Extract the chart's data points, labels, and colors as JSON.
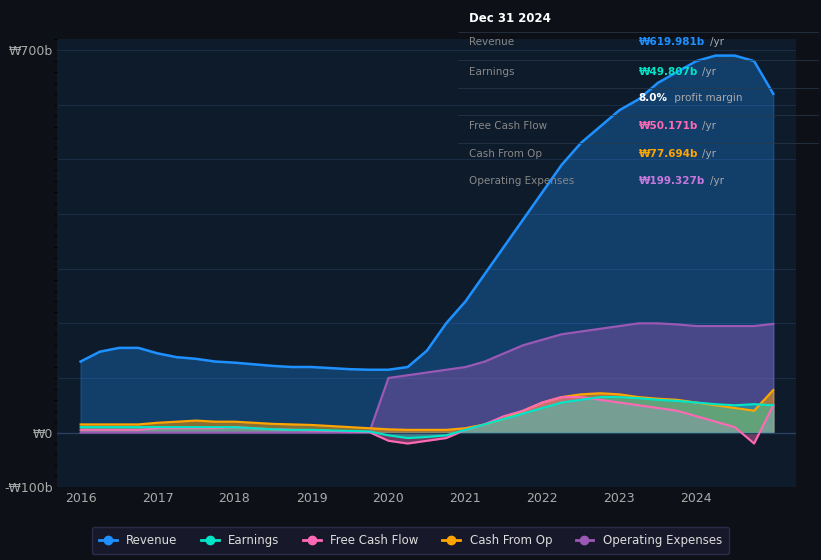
{
  "background_color": "#0d1117",
  "plot_bg_color": "#0d1b2a",
  "grid_color": "#1e3050",
  "title_box": {
    "date": "Dec 31 2024",
    "rows": [
      {
        "label": "Revenue",
        "value": "₩619.981b",
        "unit": "/yr",
        "value_color": "#00bfff"
      },
      {
        "label": "Earnings",
        "value": "₩49.807b",
        "unit": "/yr",
        "value_color": "#00e5c8"
      },
      {
        "label": "",
        "value": "8.0%",
        "unit": " profit margin",
        "value_color": "#ffffff"
      },
      {
        "label": "Free Cash Flow",
        "value": "₩50.171b",
        "unit": "/yr",
        "value_color": "#ff69b4"
      },
      {
        "label": "Cash From Op",
        "value": "₩77.694b",
        "unit": "/yr",
        "value_color": "#ffa500"
      },
      {
        "label": "Operating Expenses",
        "value": "₩199.327b",
        "unit": "/yr",
        "value_color": "#c678dd"
      }
    ]
  },
  "years": [
    2016.0,
    2016.25,
    2016.5,
    2016.75,
    2017.0,
    2017.25,
    2017.5,
    2017.75,
    2018.0,
    2018.25,
    2018.5,
    2018.75,
    2019.0,
    2019.25,
    2019.5,
    2019.75,
    2020.0,
    2020.25,
    2020.5,
    2020.75,
    2021.0,
    2021.25,
    2021.5,
    2021.75,
    2022.0,
    2022.25,
    2022.5,
    2022.75,
    2023.0,
    2023.25,
    2023.5,
    2023.75,
    2024.0,
    2024.25,
    2024.5,
    2024.75,
    2025.0
  ],
  "revenue": [
    130,
    148,
    155,
    155,
    145,
    138,
    135,
    130,
    128,
    125,
    122,
    120,
    120,
    118,
    116,
    115,
    115,
    120,
    150,
    200,
    240,
    290,
    340,
    390,
    440,
    490,
    530,
    560,
    590,
    610,
    640,
    660,
    680,
    690,
    690,
    680,
    620
  ],
  "earnings": [
    10,
    10,
    10,
    10,
    10,
    10,
    10,
    10,
    10,
    8,
    6,
    5,
    5,
    4,
    3,
    2,
    -5,
    -10,
    -8,
    -5,
    5,
    15,
    25,
    35,
    45,
    55,
    60,
    65,
    65,
    63,
    60,
    58,
    55,
    52,
    50,
    52,
    50
  ],
  "free_cash_flow": [
    5,
    5,
    5,
    5,
    8,
    8,
    8,
    8,
    10,
    8,
    6,
    5,
    4,
    3,
    2,
    1,
    -15,
    -20,
    -15,
    -10,
    5,
    15,
    30,
    40,
    55,
    65,
    65,
    60,
    55,
    50,
    45,
    40,
    30,
    20,
    10,
    -20,
    50
  ],
  "cash_from_op": [
    15,
    15,
    15,
    15,
    18,
    20,
    22,
    20,
    20,
    18,
    16,
    15,
    14,
    12,
    10,
    8,
    6,
    5,
    5,
    5,
    8,
    15,
    25,
    40,
    55,
    65,
    70,
    72,
    70,
    65,
    62,
    60,
    55,
    50,
    45,
    40,
    78
  ],
  "operating_expenses": [
    0,
    0,
    0,
    0,
    0,
    0,
    0,
    0,
    0,
    0,
    0,
    0,
    0,
    0,
    0,
    0,
    100,
    105,
    110,
    115,
    120,
    130,
    145,
    160,
    170,
    180,
    185,
    190,
    195,
    200,
    200,
    198,
    195,
    195,
    195,
    195,
    199
  ],
  "revenue_color": "#1e90ff",
  "earnings_color": "#00e5c8",
  "fcf_color": "#ff69b4",
  "cashop_color": "#ffa500",
  "opex_color": "#9b59b6",
  "ylim": [
    -100,
    720
  ],
  "yticks": [
    -100,
    0,
    700
  ],
  "ytick_labels": [
    "-₩100b",
    "₩0",
    "₩700b"
  ],
  "xticks": [
    2016,
    2017,
    2018,
    2019,
    2020,
    2021,
    2022,
    2023,
    2024
  ],
  "legend": [
    {
      "label": "Revenue",
      "color": "#1e90ff"
    },
    {
      "label": "Earnings",
      "color": "#00e5c8"
    },
    {
      "label": "Free Cash Flow",
      "color": "#ff69b4"
    },
    {
      "label": "Cash From Op",
      "color": "#ffa500"
    },
    {
      "label": "Operating Expenses",
      "color": "#9b59b6"
    }
  ]
}
